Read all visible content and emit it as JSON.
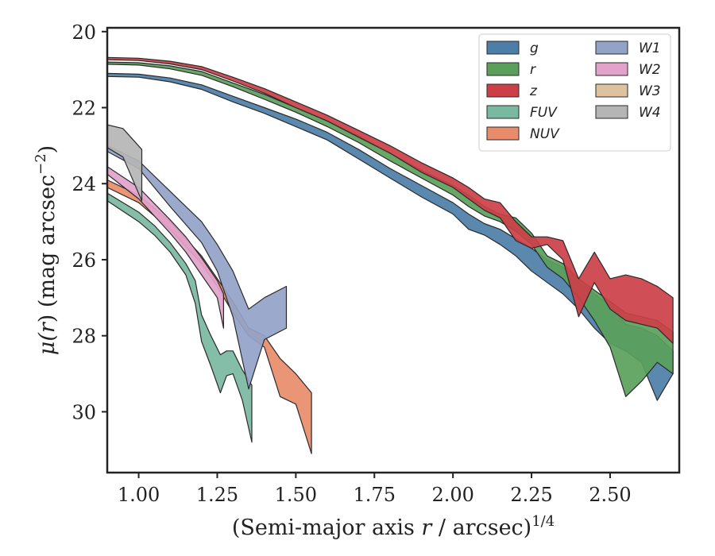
{
  "chart_data": {
    "type": "area",
    "title": "",
    "xlabel": "(Semi-major axis r / arcsec)^1/4",
    "xlabel_parts": [
      "(Semi-major axis ",
      "r",
      " / arcsec)",
      "1/4"
    ],
    "ylabel": "μ(r) (mag arcsec^−2)",
    "ylabel_parts": [
      "μ(",
      "r",
      ") (mag arcsec",
      "−2",
      ")"
    ],
    "xlim": [
      0.9,
      2.72
    ],
    "ylim": [
      31.6,
      19.9
    ],
    "y_inverted": true,
    "xticks": [
      1.0,
      1.25,
      1.5,
      1.75,
      2.0,
      2.25,
      2.5
    ],
    "xtick_labels": [
      "1.00",
      "1.25",
      "1.50",
      "1.75",
      "2.00",
      "2.25",
      "2.50"
    ],
    "yticks": [
      20,
      22,
      24,
      26,
      28,
      30
    ],
    "ytick_labels": [
      "20",
      "22",
      "24",
      "26",
      "28",
      "30"
    ],
    "grid": false,
    "legend": {
      "placement": "top-right",
      "columns": 2
    },
    "series": [
      {
        "name": "g",
        "color": "#4c7ea8",
        "x": [
          0.9,
          1.0,
          1.1,
          1.2,
          1.3,
          1.4,
          1.5,
          1.6,
          1.7,
          1.8,
          1.9,
          2.0,
          2.05,
          2.1,
          2.15,
          2.2,
          2.25,
          2.3,
          2.35,
          2.4,
          2.45,
          2.5,
          2.55,
          2.6,
          2.65,
          2.7
        ],
        "y_upper": [
          21.1,
          21.12,
          21.22,
          21.4,
          21.7,
          22.0,
          22.3,
          22.65,
          23.1,
          23.6,
          24.05,
          24.5,
          24.8,
          25.05,
          25.2,
          25.45,
          25.7,
          26.0,
          26.2,
          26.6,
          26.9,
          27.2,
          27.7,
          27.8,
          28.0,
          28.4
        ],
        "y_lower": [
          21.18,
          21.2,
          21.32,
          21.52,
          21.85,
          22.15,
          22.5,
          22.85,
          23.35,
          23.85,
          24.35,
          24.8,
          25.2,
          25.35,
          25.6,
          25.9,
          26.3,
          26.6,
          26.9,
          27.3,
          27.8,
          28.2,
          28.4,
          28.7,
          29.7,
          29.0
        ]
      },
      {
        "name": "r",
        "color": "#5aa05a",
        "x": [
          0.9,
          1.0,
          1.1,
          1.2,
          1.3,
          1.4,
          1.5,
          1.6,
          1.7,
          1.8,
          1.9,
          2.0,
          2.05,
          2.1,
          2.15,
          2.2,
          2.25,
          2.3,
          2.35,
          2.4,
          2.45,
          2.5,
          2.55,
          2.6,
          2.65,
          2.7
        ],
        "y_upper": [
          20.8,
          20.82,
          20.9,
          21.05,
          21.35,
          21.65,
          22.0,
          22.35,
          22.75,
          23.2,
          23.65,
          24.05,
          24.3,
          24.6,
          24.8,
          24.9,
          25.3,
          25.9,
          26.1,
          26.5,
          26.8,
          27.1,
          27.4,
          27.5,
          27.6,
          27.9
        ],
        "y_lower": [
          20.86,
          20.88,
          20.98,
          21.15,
          21.45,
          21.78,
          22.12,
          22.5,
          22.92,
          23.4,
          23.85,
          24.3,
          24.6,
          24.85,
          25.0,
          25.25,
          25.6,
          26.2,
          26.5,
          27.0,
          27.6,
          28.3,
          29.6,
          29.2,
          28.7,
          29.0
        ]
      },
      {
        "name": "z",
        "color": "#cc3f47",
        "x": [
          0.9,
          1.0,
          1.1,
          1.2,
          1.3,
          1.4,
          1.5,
          1.6,
          1.7,
          1.8,
          1.9,
          2.0,
          2.05,
          2.1,
          2.15,
          2.2,
          2.25,
          2.3,
          2.35,
          2.4,
          2.45,
          2.5,
          2.55,
          2.6,
          2.65,
          2.7
        ],
        "y_upper": [
          20.68,
          20.7,
          20.78,
          20.92,
          21.2,
          21.5,
          21.85,
          22.2,
          22.6,
          23.0,
          23.45,
          23.85,
          24.1,
          24.4,
          24.5,
          25.0,
          25.4,
          25.4,
          25.5,
          26.5,
          25.8,
          26.5,
          26.4,
          26.5,
          26.7,
          27.0
        ],
        "y_lower": [
          20.74,
          20.76,
          20.85,
          21.0,
          21.3,
          21.62,
          22.0,
          22.35,
          22.78,
          23.2,
          23.7,
          24.1,
          24.4,
          24.7,
          24.9,
          25.5,
          25.7,
          25.6,
          26.0,
          27.5,
          26.6,
          27.3,
          27.6,
          27.7,
          27.8,
          28.2
        ]
      },
      {
        "name": "FUV",
        "color": "#79b9a2",
        "x": [
          0.9,
          1.0,
          1.05,
          1.1,
          1.15,
          1.18,
          1.2,
          1.23,
          1.26,
          1.28,
          1.3,
          1.33,
          1.36
        ],
        "y_upper": [
          24.25,
          24.75,
          25.1,
          25.55,
          26.1,
          26.55,
          27.45,
          28.0,
          28.5,
          28.4,
          28.4,
          28.9,
          29.3
        ],
        "y_lower": [
          24.45,
          25.0,
          25.35,
          25.8,
          26.4,
          27.15,
          28.15,
          28.8,
          29.5,
          29.05,
          29.0,
          29.7,
          30.8
        ]
      },
      {
        "name": "NUV",
        "color": "#e98c6b",
        "x": [
          0.9,
          1.0,
          1.1,
          1.2,
          1.25,
          1.3,
          1.35,
          1.4,
          1.45,
          1.5,
          1.55
        ],
        "y_upper": [
          23.9,
          24.3,
          25.0,
          25.9,
          26.5,
          27.1,
          27.8,
          28.0,
          28.6,
          29.0,
          29.5
        ],
        "y_lower": [
          24.1,
          24.5,
          25.2,
          26.1,
          26.7,
          27.4,
          28.0,
          28.3,
          29.6,
          29.8,
          31.1
        ]
      },
      {
        "name": "W1",
        "color": "#93a3c8",
        "x": [
          0.9,
          1.0,
          1.1,
          1.2,
          1.25,
          1.3,
          1.35,
          1.4,
          1.47
        ],
        "y_upper": [
          23.0,
          23.4,
          24.2,
          25.0,
          25.6,
          26.3,
          27.3,
          27.0,
          26.7
        ],
        "y_lower": [
          23.15,
          23.6,
          24.6,
          25.55,
          26.3,
          27.5,
          29.4,
          28.1,
          27.8
        ]
      },
      {
        "name": "W2",
        "color": "#e2a2ca",
        "x": [
          0.9,
          1.0,
          1.1,
          1.15,
          1.2,
          1.25,
          1.27
        ],
        "y_upper": [
          23.55,
          24.1,
          24.95,
          25.4,
          25.95,
          26.55,
          26.9
        ],
        "y_lower": [
          23.75,
          24.4,
          25.3,
          25.8,
          26.4,
          27.0,
          27.8
        ]
      },
      {
        "name": "W3",
        "color": "#dec29f",
        "x": [],
        "y_upper": [],
        "y_lower": []
      },
      {
        "name": "W4",
        "color": "#b5b5b5",
        "x": [
          0.9,
          0.95,
          1.01
        ],
        "y_upper": [
          22.45,
          22.55,
          23.1
        ],
        "y_lower": [
          23.05,
          23.3,
          24.45
        ]
      }
    ]
  }
}
